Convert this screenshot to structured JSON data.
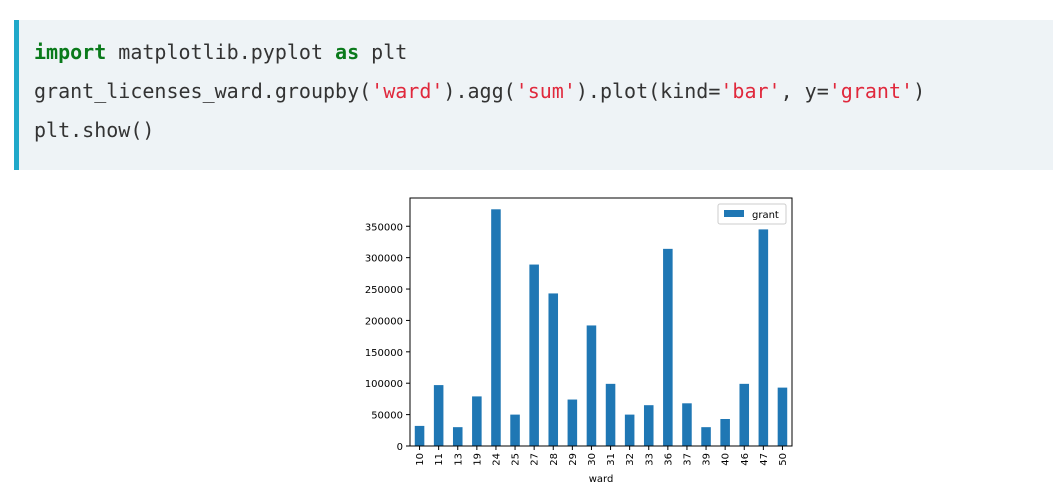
{
  "code": {
    "line1": {
      "kw1": "import",
      "mid": " matplotlib.pyplot ",
      "kw2": "as",
      "end": " plt"
    },
    "line2": {
      "p1": "grant_licenses_ward.groupby(",
      "s1": "'ward'",
      "p2": ").agg(",
      "s2": "'sum'",
      "p3": ").plot(kind=",
      "s3": "'bar'",
      "p4": ", y=",
      "s4": "'grant'",
      "p5": ")"
    },
    "line3": "plt.show()"
  },
  "chart_data": {
    "type": "bar",
    "xlabel": "ward",
    "categories": [
      "10",
      "11",
      "13",
      "19",
      "24",
      "25",
      "27",
      "28",
      "29",
      "30",
      "31",
      "32",
      "33",
      "36",
      "37",
      "39",
      "40",
      "46",
      "47",
      "50"
    ],
    "series": [
      {
        "name": "grant",
        "color": "#1f77b4",
        "values": [
          32000,
          97000,
          30000,
          79000,
          377000,
          50000,
          289000,
          243000,
          74000,
          192000,
          99000,
          50000,
          65000,
          314000,
          68000,
          30000,
          43000,
          99000,
          345000,
          93000
        ]
      }
    ],
    "yticks": [
      0,
      50000,
      100000,
      150000,
      200000,
      250000,
      300000,
      350000
    ],
    "ylim": [
      0,
      395000
    ],
    "legend_position": "top-right",
    "grid": false
  }
}
